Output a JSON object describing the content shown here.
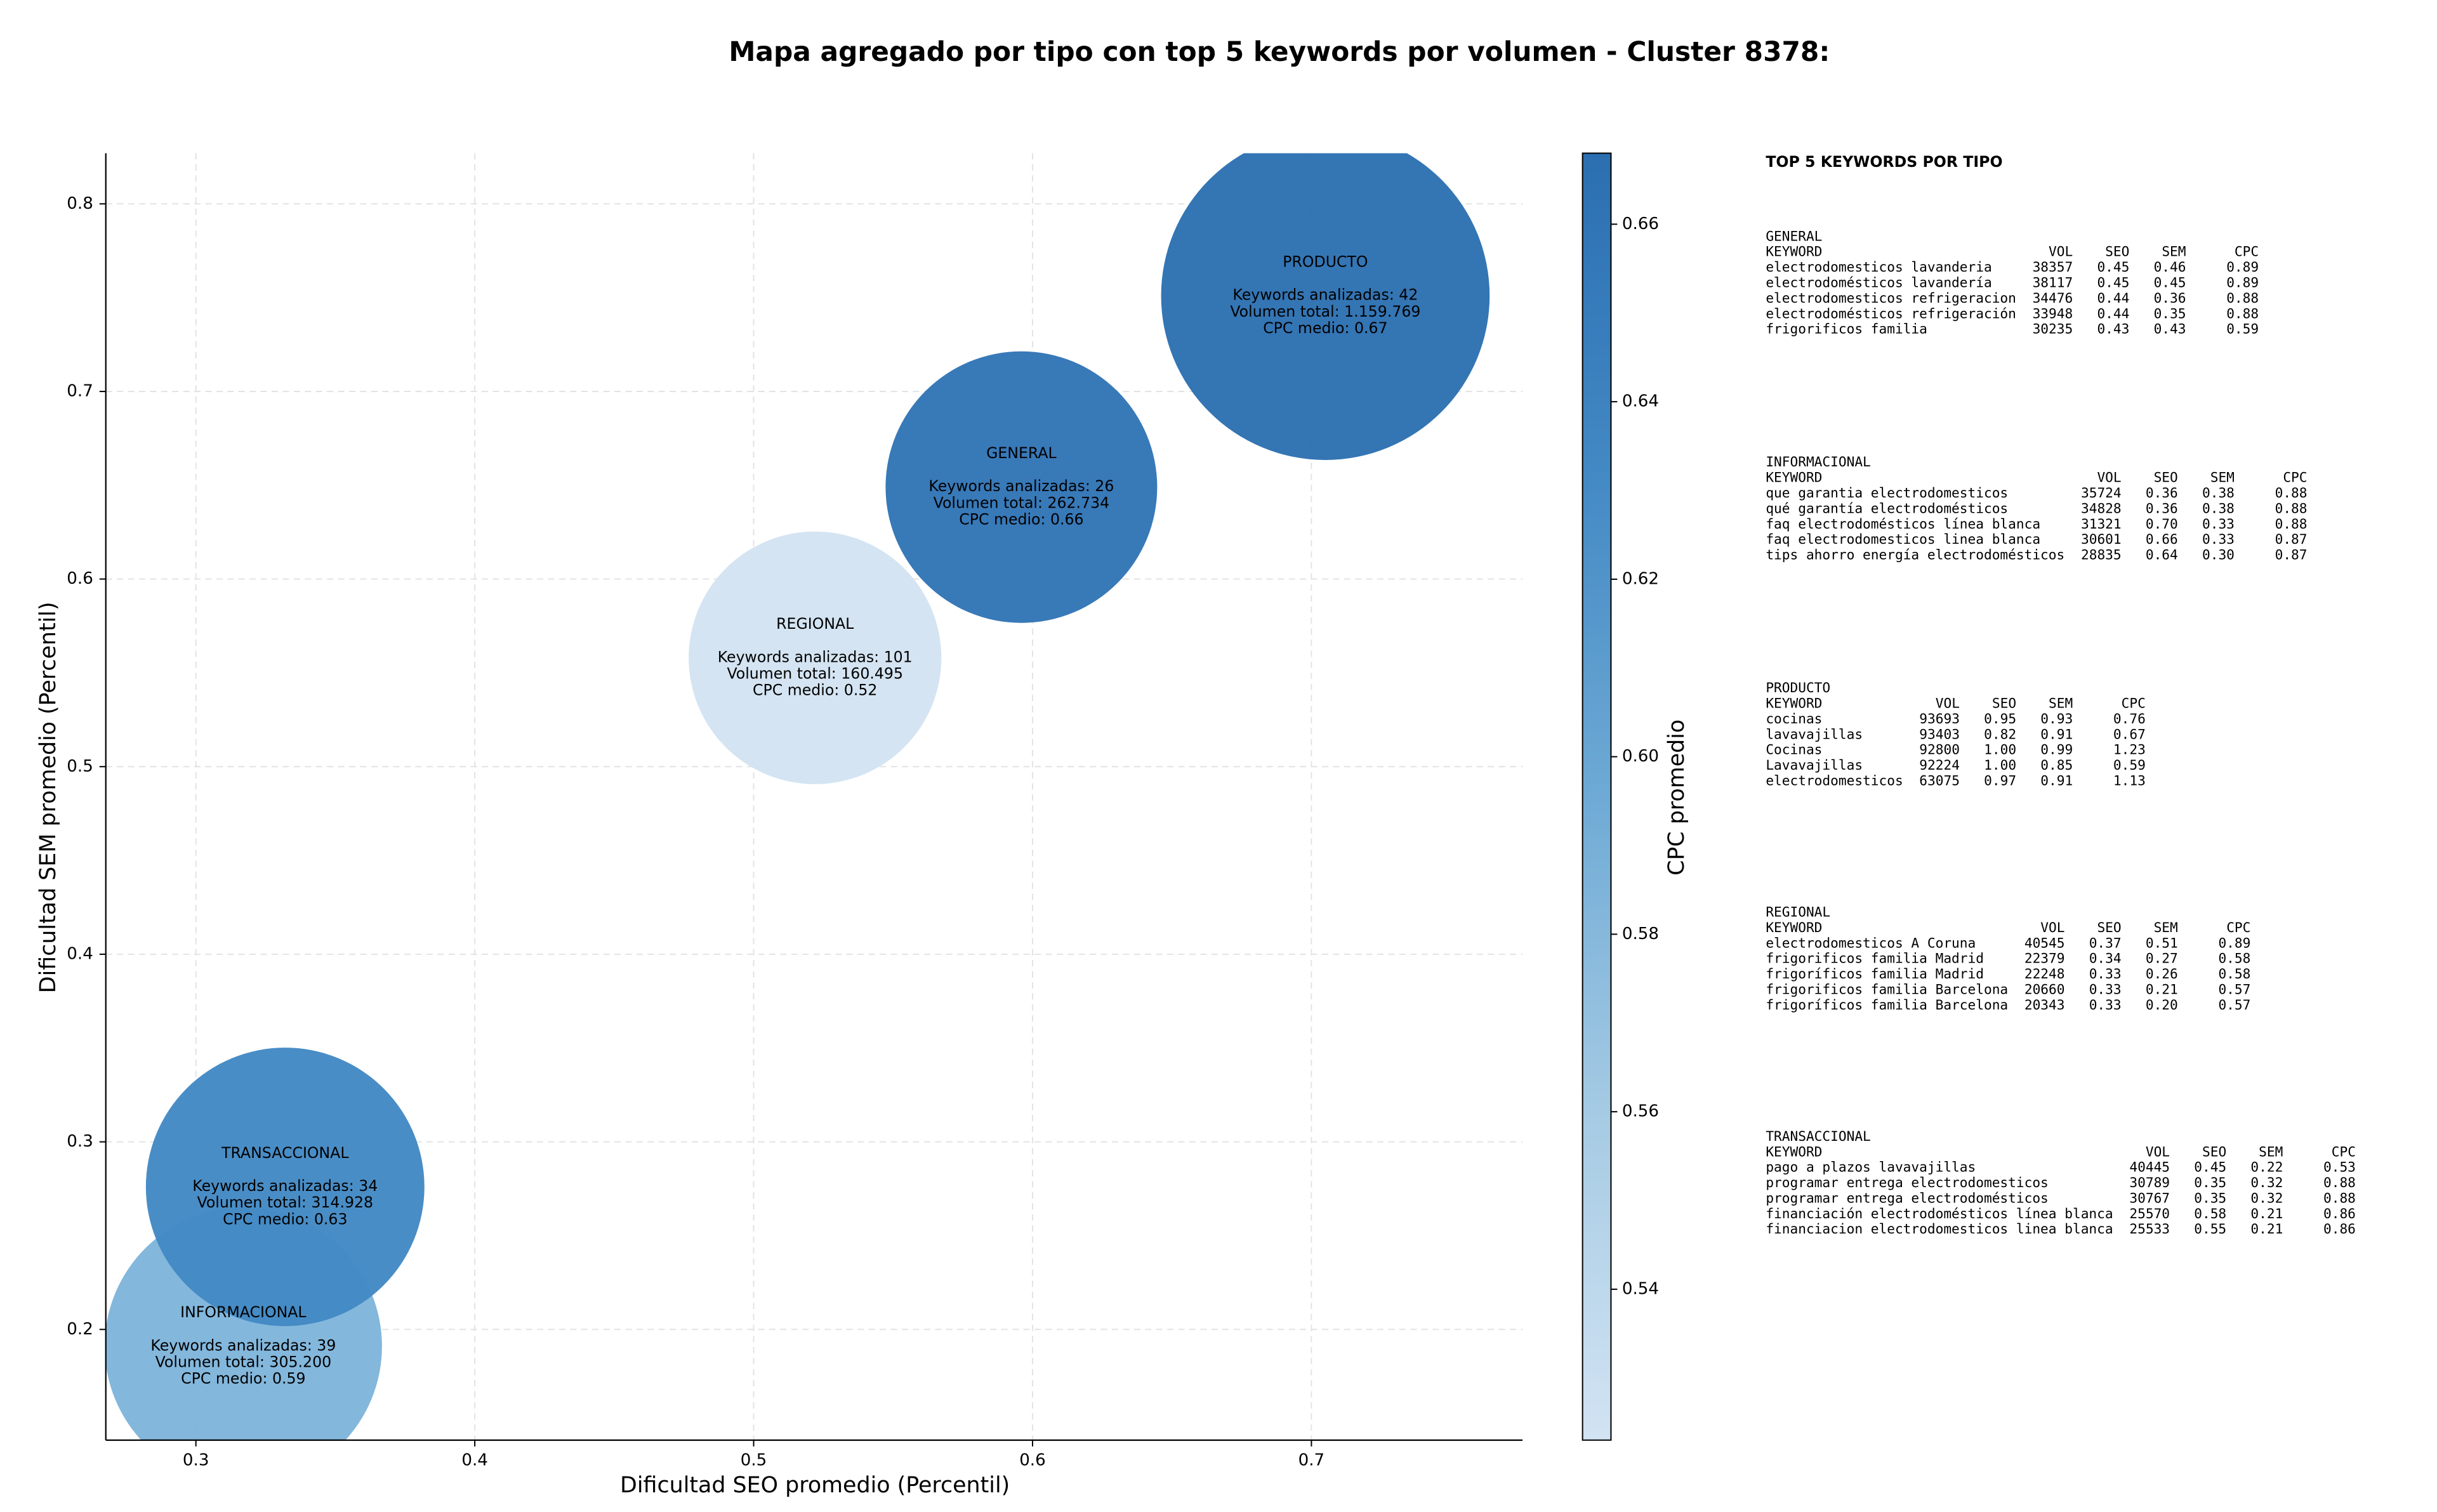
{
  "chart_data": {
    "type": "bubble",
    "title": "Mapa agregado por tipo con top 5 keywords por volumen - Cluster 8378:",
    "x_label": "Dificultad SEO promedio (Percentil)",
    "y_label": "Dificultad SEM promedio (Percentil)",
    "xlim": [
      0.2677,
      0.7757
    ],
    "xticks": [
      0.3,
      0.4,
      0.5,
      0.6,
      0.7
    ],
    "ylim": [
      0.141,
      0.827
    ],
    "yticks": [
      0.2,
      0.3,
      0.4,
      0.5,
      0.6,
      0.7,
      0.8
    ],
    "grid": true,
    "points": [
      {
        "name": "GENERAL",
        "x": 0.596,
        "y": 0.649,
        "size": 262734,
        "color": "#3275b6",
        "lines": [
          "Keywords analizadas: 26",
          "Volumen total: 262.734",
          "CPC medio: 0.66"
        ]
      },
      {
        "name": "INFORMACIONAL",
        "x": 0.317,
        "y": 0.191,
        "size": 305200,
        "color": "#7fb5db",
        "lines": [
          "Keywords analizadas: 39",
          "Volumen total: 305.200",
          "CPC medio: 0.59"
        ]
      },
      {
        "name": "PRODUCTO",
        "x": 0.705,
        "y": 0.751,
        "size": 1159769,
        "color": "#2d71b2",
        "lines": [
          "Keywords analizadas: 42",
          "Volumen total: 1.159.769",
          "CPC medio: 0.67"
        ]
      },
      {
        "name": "REGIONAL",
        "x": 0.522,
        "y": 0.558,
        "size": 160495,
        "color": "#d3e3f2",
        "lines": [
          "Keywords analizadas: 101",
          "Volumen total: 160.495",
          "CPC medio: 0.52"
        ]
      },
      {
        "name": "TRANSACCIONAL",
        "x": 0.332,
        "y": 0.276,
        "size": 314928,
        "color": "#4389c4",
        "lines": [
          "Keywords analizadas: 34",
          "Volumen total: 314.928",
          "CPC medio: 0.63"
        ]
      }
    ],
    "colorbar": {
      "label": "CPC promedio",
      "lim": [
        0.523,
        0.668
      ],
      "ticks": [
        0.54,
        0.56,
        0.58,
        {
          "value": 0.6,
          "label": "0.60"
        },
        0.62,
        0.64,
        0.66
      ]
    }
  },
  "panel": {
    "title": "TOP 5 KEYWORDS POR TIPO",
    "groups": [
      {
        "name": "GENERAL",
        "header": [
          "KEYWORD",
          "VOL",
          "SEO",
          "SEM",
          "CPC"
        ],
        "rows": [
          [
            "electrodomesticos lavanderia",
            "38357",
            "0.45",
            "0.46",
            "0.89"
          ],
          [
            "electrodomésticos lavandería",
            "38117",
            "0.45",
            "0.45",
            "0.89"
          ],
          [
            "electrodomesticos refrigeracion",
            "34476",
            "0.44",
            "0.36",
            "0.88"
          ],
          [
            "electrodomésticos refrigeración",
            "33948",
            "0.44",
            "0.35",
            "0.88"
          ],
          [
            "frigorificos familia",
            "30235",
            "0.43",
            "0.43",
            "0.59"
          ]
        ]
      },
      {
        "name": "INFORMACIONAL",
        "header": [
          "KEYWORD",
          "VOL",
          "SEO",
          "SEM",
          "CPC"
        ],
        "rows": [
          [
            "que garantia electrodomesticos",
            "35724",
            "0.36",
            "0.38",
            "0.88"
          ],
          [
            "qué garantía electrodomésticos",
            "34828",
            "0.36",
            "0.38",
            "0.88"
          ],
          [
            "faq electrodomésticos línea blanca",
            "31321",
            "0.70",
            "0.33",
            "0.88"
          ],
          [
            "faq electrodomesticos linea blanca",
            "30601",
            "0.66",
            "0.33",
            "0.87"
          ],
          [
            "tips ahorro energía electrodomésticos",
            "28835",
            "0.64",
            "0.30",
            "0.87"
          ]
        ]
      },
      {
        "name": "PRODUCTO",
        "header": [
          "KEYWORD",
          "VOL",
          "SEO",
          "SEM",
          "CPC"
        ],
        "rows": [
          [
            "cocinas",
            "93693",
            "0.95",
            "0.93",
            "0.76"
          ],
          [
            "lavavajillas",
            "93403",
            "0.82",
            "0.91",
            "0.67"
          ],
          [
            "Cocinas",
            "92800",
            "1.00",
            "0.99",
            "1.23"
          ],
          [
            "Lavavajillas",
            "92224",
            "1.00",
            "0.85",
            "0.59"
          ],
          [
            "electrodomesticos",
            "63075",
            "0.97",
            "0.91",
            "1.13"
          ]
        ]
      },
      {
        "name": "REGIONAL",
        "header": [
          "KEYWORD",
          "VOL",
          "SEO",
          "SEM",
          "CPC"
        ],
        "rows": [
          [
            "electrodomesticos A Coruna",
            "40545",
            "0.37",
            "0.51",
            "0.89"
          ],
          [
            "frigorificos familia Madrid",
            "22379",
            "0.34",
            "0.27",
            "0.58"
          ],
          [
            "frigoríficos familia Madrid",
            "22248",
            "0.33",
            "0.26",
            "0.58"
          ],
          [
            "frigorificos familia Barcelona",
            "20660",
            "0.33",
            "0.21",
            "0.57"
          ],
          [
            "frigoríficos familia Barcelona",
            "20343",
            "0.33",
            "0.20",
            "0.57"
          ]
        ]
      },
      {
        "name": "TRANSACCIONAL",
        "header": [
          "KEYWORD",
          "VOL",
          "SEO",
          "SEM",
          "CPC"
        ],
        "rows": [
          [
            "pago a plazos lavavajillas",
            "40445",
            "0.45",
            "0.22",
            "0.53"
          ],
          [
            "programar entrega electrodomesticos",
            "30789",
            "0.35",
            "0.32",
            "0.88"
          ],
          [
            "programar entrega electrodomésticos",
            "30767",
            "0.35",
            "0.32",
            "0.88"
          ],
          [
            "financiación electrodomésticos línea blanca",
            "25570",
            "0.58",
            "0.21",
            "0.86"
          ],
          [
            "financiacion electrodomesticos linea blanca",
            "25533",
            "0.55",
            "0.21",
            "0.86"
          ]
        ]
      }
    ]
  }
}
